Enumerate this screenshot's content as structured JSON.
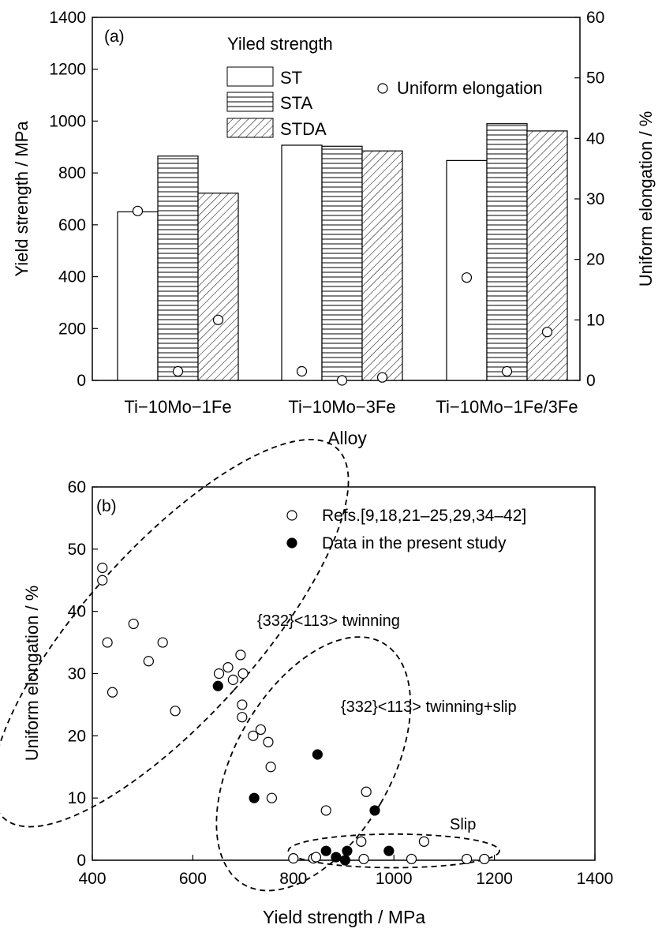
{
  "chart_data": [
    {
      "type": "bar",
      "panel_label": "(a)",
      "xlabel": "Alloy",
      "ylabel": "Yield strength / MPa",
      "y2label": "Uniform elongation / %",
      "ylim": [
        0,
        1400
      ],
      "y2lim": [
        0,
        60
      ],
      "yticks": [
        "0",
        "200",
        "400",
        "600",
        "800",
        "1000",
        "1200",
        "1400"
      ],
      "y2ticks": [
        "0",
        "10",
        "20",
        "30",
        "40",
        "50",
        "60"
      ],
      "categories": [
        "Ti−10Mo−1Fe",
        "Ti−10Mo−3Fe",
        "Ti−10Mo−1Fe/3Fe"
      ],
      "legend_title": "Yiled strength",
      "series": [
        {
          "name": "ST",
          "pattern": "plain",
          "values": [
            650,
            907,
            848
          ]
        },
        {
          "name": "STA",
          "pattern": "horizontal",
          "values": [
            865,
            903,
            990
          ]
        },
        {
          "name": "STDA",
          "pattern": "diagonal",
          "values": [
            722,
            885,
            962
          ]
        }
      ],
      "elongation": {
        "name": "Uniform elongation",
        "axis": "right",
        "values": [
          [
            28,
            1.5,
            10
          ],
          [
            1.5,
            0,
            0.5
          ],
          [
            17,
            1.5,
            8
          ]
        ]
      }
    },
    {
      "type": "scatter",
      "panel_label": "(b)",
      "xlabel": "Yield strength / MPa",
      "ylabel": "Uniform elongation / %",
      "xlim": [
        400,
        1400
      ],
      "ylim": [
        0,
        60
      ],
      "xticks": [
        "400",
        "600",
        "800",
        "1000",
        "1200",
        "1400"
      ],
      "yticks": [
        "0",
        "10",
        "20",
        "30",
        "40",
        "50",
        "60"
      ],
      "series": [
        {
          "name": "Refs.[9,18,21–25,29,34–42]",
          "marker": "open",
          "points": [
            [
              420,
              47
            ],
            [
              420,
              45
            ],
            [
              430,
              35
            ],
            [
              440,
              27
            ],
            [
              482,
              38
            ],
            [
              512,
              32
            ],
            [
              540,
              35
            ],
            [
              565,
              24
            ],
            [
              652,
              30
            ],
            [
              670,
              31
            ],
            [
              680,
              29
            ],
            [
              695,
              33
            ],
            [
              700,
              30
            ],
            [
              698,
              25
            ],
            [
              698,
              23
            ],
            [
              720,
              20
            ],
            [
              735,
              21
            ],
            [
              750,
              19
            ],
            [
              755,
              15
            ],
            [
              757,
              10
            ],
            [
              865,
              8
            ],
            [
              945,
              11
            ],
            [
              800,
              0.3
            ],
            [
              840,
              0.3
            ],
            [
              845,
              0.5
            ],
            [
              935,
              3
            ],
            [
              940,
              0.2
            ],
            [
              1035,
              0.2
            ],
            [
              1060,
              3
            ],
            [
              1145,
              0.2
            ],
            [
              1180,
              0.2
            ]
          ]
        },
        {
          "name": "Data in the present study",
          "marker": "filled",
          "points": [
            [
              650,
              28
            ],
            [
              722,
              10
            ],
            [
              848,
              17
            ],
            [
              962,
              8
            ],
            [
              865,
              1.5
            ],
            [
              885,
              0.5
            ],
            [
              903,
              0
            ],
            [
              907,
              1.5
            ],
            [
              990,
              1.5
            ]
          ]
        }
      ],
      "regions": [
        {
          "label": "{332}<113> twinning",
          "cx": 555,
          "cy": 36.5,
          "rx": 170,
          "ry": 12.5,
          "angle_deg": 42
        },
        {
          "label": "{332}<113> twinning+slip",
          "cx": 840,
          "cy": 15.5,
          "rx": 155,
          "ry": 7,
          "angle_deg": 30
        },
        {
          "label": "Slip",
          "cx": 1000,
          "cy": 1.5,
          "rx": 210,
          "ry": 2.7,
          "angle_deg": 0
        }
      ]
    }
  ]
}
